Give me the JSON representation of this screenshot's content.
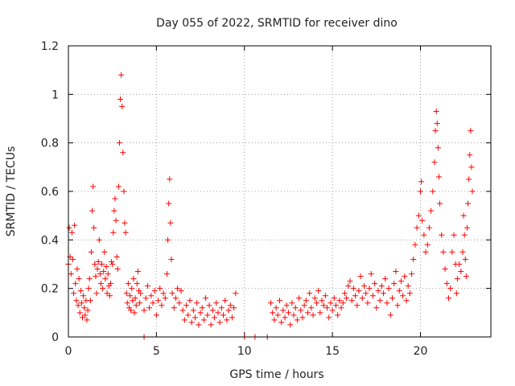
{
  "chart_data": {
    "type": "scatter",
    "title": "Day 055 of 2022, SRMTID for receiver dino",
    "xlabel": "GPS time / hours",
    "ylabel": "SRMTID / TECUs",
    "xlim": [
      0,
      24
    ],
    "ylim": [
      0,
      1.2
    ],
    "xticks": [
      0,
      5,
      10,
      15,
      20
    ],
    "yticks": [
      0,
      0.2,
      0.4,
      0.6,
      0.8,
      1,
      1.2
    ],
    "xtick_labels": [
      "0",
      "5",
      "10",
      "15",
      "20"
    ],
    "ytick_labels": [
      "0",
      "0.2",
      "0.4",
      "0.6",
      "0.8",
      "1",
      "1.2"
    ],
    "grid": true,
    "marker": "+",
    "series": [
      {
        "name": "SRMTID",
        "color": "#ff0000",
        "points": [
          [
            0.0,
            0.3
          ],
          [
            0.05,
            0.45
          ],
          [
            0.1,
            0.33
          ],
          [
            0.15,
            0.26
          ],
          [
            0.2,
            0.43
          ],
          [
            0.25,
            0.32
          ],
          [
            0.3,
            0.18
          ],
          [
            0.35,
            0.46
          ],
          [
            0.4,
            0.22
          ],
          [
            0.45,
            0.15
          ],
          [
            0.5,
            0.28
          ],
          [
            0.55,
            0.13
          ],
          [
            0.6,
            0.24
          ],
          [
            0.65,
            0.1
          ],
          [
            0.7,
            0.19
          ],
          [
            0.75,
            0.14
          ],
          [
            0.8,
            0.08
          ],
          [
            0.85,
            0.17
          ],
          [
            0.9,
            0.12
          ],
          [
            0.95,
            0.09
          ],
          [
            1.0,
            0.15
          ],
          [
            1.05,
            0.07
          ],
          [
            1.1,
            0.11
          ],
          [
            1.15,
            0.2
          ],
          [
            1.2,
            0.24
          ],
          [
            1.25,
            0.15
          ],
          [
            1.3,
            0.35
          ],
          [
            1.35,
            0.52
          ],
          [
            1.4,
            0.62
          ],
          [
            1.45,
            0.45
          ],
          [
            1.5,
            0.3
          ],
          [
            1.55,
            0.25
          ],
          [
            1.6,
            0.18
          ],
          [
            1.65,
            0.28
          ],
          [
            1.7,
            0.31
          ],
          [
            1.75,
            0.4
          ],
          [
            1.8,
            0.26
          ],
          [
            1.85,
            0.22
          ],
          [
            1.9,
            0.3
          ],
          [
            1.95,
            0.2
          ],
          [
            2.0,
            0.27
          ],
          [
            2.05,
            0.35
          ],
          [
            2.1,
            0.24
          ],
          [
            2.15,
            0.29
          ],
          [
            2.2,
            0.18
          ],
          [
            2.25,
            0.26
          ],
          [
            2.3,
            0.21
          ],
          [
            2.35,
            0.17
          ],
          [
            2.4,
            0.22
          ],
          [
            2.45,
            0.31
          ],
          [
            2.5,
            0.3
          ],
          [
            2.55,
            0.43
          ],
          [
            2.6,
            0.52
          ],
          [
            2.65,
            0.57
          ],
          [
            2.7,
            0.48
          ],
          [
            2.75,
            0.33
          ],
          [
            2.8,
            0.28
          ],
          [
            2.85,
            0.62
          ],
          [
            2.9,
            0.8
          ],
          [
            2.95,
            0.98
          ],
          [
            3.0,
            1.08
          ],
          [
            3.05,
            0.95
          ],
          [
            3.1,
            0.76
          ],
          [
            3.15,
            0.6
          ],
          [
            3.2,
            0.47
          ],
          [
            3.25,
            0.43
          ],
          [
            3.3,
            0.18
          ],
          [
            3.35,
            0.14
          ],
          [
            3.4,
            0.22
          ],
          [
            3.45,
            0.12
          ],
          [
            3.5,
            0.17
          ],
          [
            3.55,
            0.11
          ],
          [
            3.6,
            0.2
          ],
          [
            3.65,
            0.15
          ],
          [
            3.7,
            0.24
          ],
          [
            3.75,
            0.1
          ],
          [
            3.8,
            0.16
          ],
          [
            3.85,
            0.13
          ],
          [
            3.9,
            0.22
          ],
          [
            3.95,
            0.27
          ],
          [
            4.0,
            0.19
          ],
          [
            4.05,
            0.14
          ],
          [
            4.1,
            0.18
          ],
          [
            4.3,
            0.11
          ],
          [
            4.4,
            0.16
          ],
          [
            4.5,
            0.21
          ],
          [
            4.6,
            0.12
          ],
          [
            4.7,
            0.17
          ],
          [
            4.8,
            0.14
          ],
          [
            4.9,
            0.19
          ],
          [
            5.0,
            0.09
          ],
          [
            5.1,
            0.15
          ],
          [
            5.2,
            0.2
          ],
          [
            5.3,
            0.13
          ],
          [
            5.4,
            0.18
          ],
          [
            5.5,
            0.16
          ],
          [
            5.6,
            0.26
          ],
          [
            5.65,
            0.4
          ],
          [
            5.7,
            0.55
          ],
          [
            5.75,
            0.65
          ],
          [
            5.8,
            0.47
          ],
          [
            5.85,
            0.32
          ],
          [
            5.9,
            0.18
          ],
          [
            6.0,
            0.12
          ],
          [
            6.1,
            0.16
          ],
          [
            6.2,
            0.2
          ],
          [
            6.3,
            0.14
          ],
          [
            6.4,
            0.19
          ],
          [
            6.5,
            0.11
          ],
          [
            6.6,
            0.07
          ],
          [
            6.7,
            0.13
          ],
          [
            6.8,
            0.09
          ],
          [
            6.9,
            0.15
          ],
          [
            7.0,
            0.06
          ],
          [
            7.1,
            0.11
          ],
          [
            7.2,
            0.08
          ],
          [
            7.3,
            0.14
          ],
          [
            7.4,
            0.05
          ],
          [
            7.5,
            0.1
          ],
          [
            7.6,
            0.12
          ],
          [
            7.7,
            0.07
          ],
          [
            7.8,
            0.16
          ],
          [
            7.9,
            0.09
          ],
          [
            8.0,
            0.13
          ],
          [
            8.1,
            0.05
          ],
          [
            8.2,
            0.11
          ],
          [
            8.3,
            0.08
          ],
          [
            8.4,
            0.14
          ],
          [
            8.5,
            0.1
          ],
          [
            8.6,
            0.06
          ],
          [
            8.7,
            0.12
          ],
          [
            8.8,
            0.09
          ],
          [
            8.9,
            0.15
          ],
          [
            9.0,
            0.07
          ],
          [
            9.1,
            0.11
          ],
          [
            9.2,
            0.13
          ],
          [
            9.3,
            0.08
          ],
          [
            9.4,
            0.12
          ],
          [
            9.5,
            0.18
          ],
          [
            4.3,
            0.0
          ],
          [
            10.0,
            0.0
          ],
          [
            10.6,
            0.0
          ],
          [
            11.3,
            0.0
          ],
          [
            11.5,
            0.14
          ],
          [
            11.6,
            0.1
          ],
          [
            11.7,
            0.07
          ],
          [
            11.8,
            0.12
          ],
          [
            11.9,
            0.09
          ],
          [
            12.0,
            0.15
          ],
          [
            12.1,
            0.06
          ],
          [
            12.2,
            0.11
          ],
          [
            12.3,
            0.08
          ],
          [
            12.4,
            0.13
          ],
          [
            12.5,
            0.1
          ],
          [
            12.6,
            0.05
          ],
          [
            12.7,
            0.14
          ],
          [
            12.8,
            0.09
          ],
          [
            12.9,
            0.12
          ],
          [
            13.0,
            0.07
          ],
          [
            13.1,
            0.16
          ],
          [
            13.2,
            0.11
          ],
          [
            13.3,
            0.08
          ],
          [
            13.4,
            0.13
          ],
          [
            13.5,
            0.15
          ],
          [
            13.6,
            0.1
          ],
          [
            13.7,
            0.18
          ],
          [
            13.8,
            0.12
          ],
          [
            13.9,
            0.09
          ],
          [
            14.0,
            0.16
          ],
          [
            14.1,
            0.14
          ],
          [
            14.2,
            0.19
          ],
          [
            14.3,
            0.1
          ],
          [
            14.4,
            0.15
          ],
          [
            14.5,
            0.13
          ],
          [
            14.6,
            0.17
          ],
          [
            14.7,
            0.12
          ],
          [
            14.8,
            0.08
          ],
          [
            14.9,
            0.14
          ],
          [
            15.0,
            0.11
          ],
          [
            15.1,
            0.16
          ],
          [
            15.2,
            0.13
          ],
          [
            15.3,
            0.09
          ],
          [
            15.4,
            0.15
          ],
          [
            15.5,
            0.12
          ],
          [
            15.6,
            0.14
          ],
          [
            15.7,
            0.18
          ],
          [
            15.8,
            0.16
          ],
          [
            15.9,
            0.21
          ],
          [
            16.0,
            0.23
          ],
          [
            16.1,
            0.15
          ],
          [
            16.2,
            0.2
          ],
          [
            16.3,
            0.17
          ],
          [
            16.4,
            0.13
          ],
          [
            16.5,
            0.19
          ],
          [
            16.6,
            0.25
          ],
          [
            16.7,
            0.16
          ],
          [
            16.8,
            0.21
          ],
          [
            16.9,
            0.18
          ],
          [
            17.0,
            0.14
          ],
          [
            17.1,
            0.2
          ],
          [
            17.2,
            0.26
          ],
          [
            17.3,
            0.17
          ],
          [
            17.4,
            0.22
          ],
          [
            17.5,
            0.12
          ],
          [
            17.6,
            0.19
          ],
          [
            17.7,
            0.15
          ],
          [
            17.8,
            0.21
          ],
          [
            17.9,
            0.18
          ],
          [
            18.0,
            0.24
          ],
          [
            18.1,
            0.14
          ],
          [
            18.2,
            0.2
          ],
          [
            18.3,
            0.09
          ],
          [
            18.4,
            0.16
          ],
          [
            18.5,
            0.22
          ],
          [
            18.6,
            0.27
          ],
          [
            18.7,
            0.13
          ],
          [
            18.8,
            0.19
          ],
          [
            18.9,
            0.23
          ],
          [
            19.0,
            0.17
          ],
          [
            19.1,
            0.25
          ],
          [
            19.2,
            0.15
          ],
          [
            19.3,
            0.21
          ],
          [
            19.4,
            0.18
          ],
          [
            19.5,
            0.26
          ],
          [
            19.6,
            0.32
          ],
          [
            19.7,
            0.38
          ],
          [
            19.8,
            0.45
          ],
          [
            19.9,
            0.5
          ],
          [
            20.0,
            0.6
          ],
          [
            20.05,
            0.64
          ],
          [
            20.1,
            0.48
          ],
          [
            20.2,
            0.42
          ],
          [
            20.3,
            0.35
          ],
          [
            20.4,
            0.38
          ],
          [
            20.5,
            0.45
          ],
          [
            20.6,
            0.52
          ],
          [
            20.7,
            0.6
          ],
          [
            20.8,
            0.72
          ],
          [
            20.85,
            0.85
          ],
          [
            20.9,
            0.93
          ],
          [
            20.95,
            0.88
          ],
          [
            21.0,
            0.78
          ],
          [
            21.05,
            0.66
          ],
          [
            21.1,
            0.55
          ],
          [
            21.2,
            0.42
          ],
          [
            21.3,
            0.35
          ],
          [
            21.4,
            0.28
          ],
          [
            21.5,
            0.22
          ],
          [
            21.6,
            0.16
          ],
          [
            21.7,
            0.2
          ],
          [
            21.8,
            0.35
          ],
          [
            21.9,
            0.42
          ],
          [
            22.0,
            0.3
          ],
          [
            22.05,
            0.18
          ],
          [
            22.1,
            0.24
          ],
          [
            22.2,
            0.3
          ],
          [
            22.3,
            0.27
          ],
          [
            22.4,
            0.35
          ],
          [
            22.45,
            0.5
          ],
          [
            22.5,
            0.42
          ],
          [
            22.55,
            0.32
          ],
          [
            22.6,
            0.25
          ],
          [
            22.65,
            0.45
          ],
          [
            22.7,
            0.55
          ],
          [
            22.75,
            0.65
          ],
          [
            22.8,
            0.75
          ],
          [
            22.85,
            0.85
          ],
          [
            22.9,
            0.7
          ],
          [
            22.95,
            0.6
          ]
        ]
      }
    ]
  }
}
